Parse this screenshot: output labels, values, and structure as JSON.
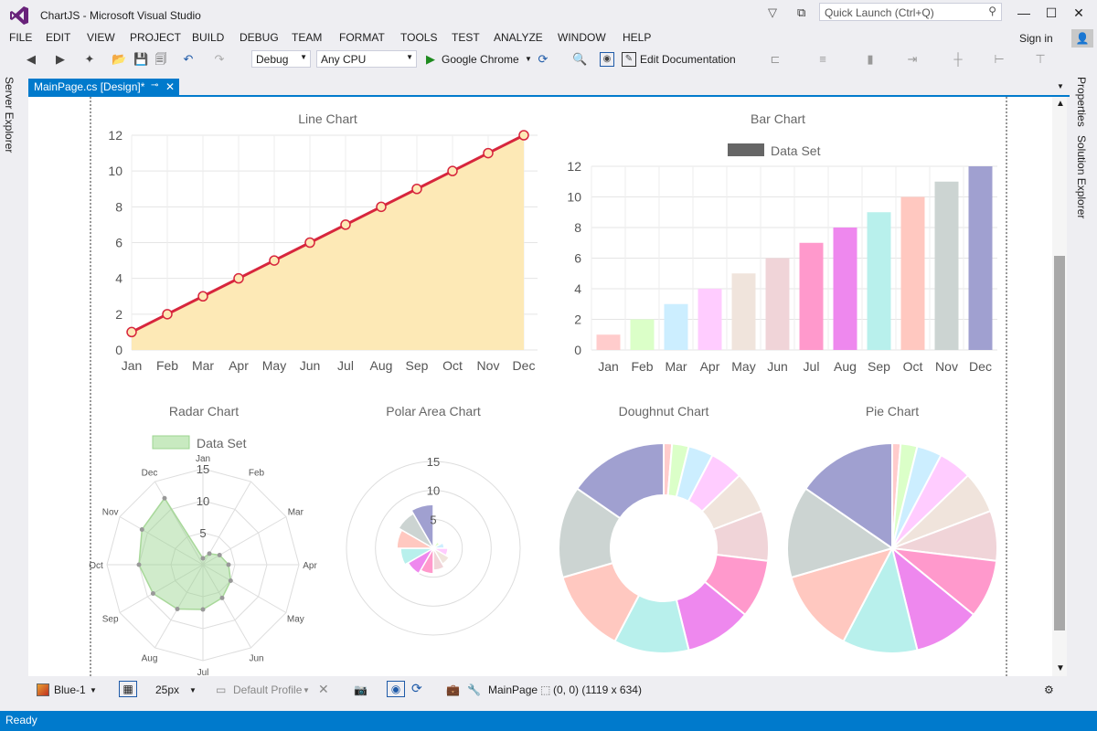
{
  "window": {
    "title": "ChartJS - Microsoft Visual Studio",
    "quick_launch_placeholder": "Quick Launch (Ctrl+Q)",
    "sign_in": "Sign in"
  },
  "menu": [
    "FILE",
    "EDIT",
    "VIEW",
    "PROJECT",
    "BUILD",
    "DEBUG",
    "TEAM",
    "FORMAT",
    "TOOLS",
    "TEST",
    "ANALYZE",
    "WINDOW",
    "HELP"
  ],
  "toolbar": {
    "config": "Debug",
    "platform": "Any CPU",
    "browser": "Google Chrome",
    "edit_doc": "Edit Documentation"
  },
  "side_tabs": {
    "server_explorer": "Server Explorer",
    "properties": "Properties",
    "solution_explorer": "Solution Explorer"
  },
  "doc_tab": {
    "label": "MainPage.cs [Design]*"
  },
  "bottom_bar": {
    "theme": "Blue-1",
    "grid_size": "25px",
    "profile": "Default Profile",
    "page": "MainPage",
    "coords": "(0, 0) (1119 x 634)"
  },
  "status": {
    "text": "Ready"
  },
  "colors": {
    "accent": "#007acc",
    "line": "#d7263d",
    "line_fill": "#fde9b6"
  },
  "chart_data": [
    {
      "type": "line",
      "title": "Line Chart",
      "categories": [
        "Jan",
        "Feb",
        "Mar",
        "Apr",
        "May",
        "Jun",
        "Jul",
        "Aug",
        "Sep",
        "Oct",
        "Nov",
        "Dec"
      ],
      "values": [
        1,
        2,
        3,
        4,
        5,
        6,
        7,
        8,
        9,
        10,
        11,
        12
      ],
      "yticks": [
        "0",
        "2",
        "4",
        "6",
        "8",
        "10",
        "12"
      ],
      "ylim": [
        0,
        12
      ]
    },
    {
      "type": "bar",
      "title": "Bar Chart",
      "legend": "Data Set",
      "categories": [
        "Jan",
        "Feb",
        "Mar",
        "Apr",
        "May",
        "Jun",
        "Jul",
        "Aug",
        "Sep",
        "Oct",
        "Nov",
        "Dec"
      ],
      "values": [
        1,
        2,
        3,
        4,
        5,
        6,
        7,
        8,
        9,
        10,
        11,
        12
      ],
      "colors": [
        "#ffcccc",
        "#dbffc8",
        "#cceeff",
        "#ffccff",
        "#f0e4dc",
        "#f0d4d8",
        "#ff99cc",
        "#ee88ee",
        "#b8f0ec",
        "#ffc8c0",
        "#ccd4d2",
        "#a0a0d0"
      ],
      "yticks": [
        "0",
        "2",
        "4",
        "6",
        "8",
        "10",
        "12"
      ],
      "ylim": [
        0,
        12
      ]
    },
    {
      "type": "radar",
      "title": "Radar Chart",
      "legend": "Data Set",
      "categories": [
        "Jan",
        "Feb",
        "Mar",
        "Apr",
        "May",
        "Jun",
        "Jul",
        "Aug",
        "Sep",
        "Oct",
        "Nov",
        "Dec"
      ],
      "values": [
        1,
        2,
        3,
        4,
        5,
        6,
        7,
        8,
        9,
        10,
        11,
        12
      ],
      "ticks": [
        "5",
        "10",
        "15"
      ],
      "max": 15
    },
    {
      "type": "polarArea",
      "title": "Polar Area Chart",
      "values": [
        1,
        2,
        3,
        4,
        5,
        6,
        7,
        8,
        9,
        10,
        11,
        12
      ],
      "colors": [
        "#ffcccc",
        "#dbffc8",
        "#cceeff",
        "#ffccff",
        "#f0e4dc",
        "#f0d4d8",
        "#ff99cc",
        "#ee88ee",
        "#b8f0ec",
        "#ffc8c0",
        "#ccd4d2",
        "#a0a0d0"
      ],
      "ticks": [
        "5",
        "10",
        "15"
      ],
      "max": 30
    },
    {
      "type": "doughnut",
      "title": "Doughnut Chart",
      "values": [
        1,
        2,
        3,
        4,
        5,
        6,
        7,
        8,
        9,
        10,
        11,
        12
      ],
      "colors": [
        "#ffcccc",
        "#dbffc8",
        "#cceeff",
        "#ffccff",
        "#f0e4dc",
        "#f0d4d8",
        "#ff99cc",
        "#ee88ee",
        "#b8f0ec",
        "#ffc8c0",
        "#ccd4d2",
        "#a0a0d0"
      ]
    },
    {
      "type": "pie",
      "title": "Pie Chart",
      "values": [
        1,
        2,
        3,
        4,
        5,
        6,
        7,
        8,
        9,
        10,
        11,
        12
      ],
      "colors": [
        "#ffcccc",
        "#dbffc8",
        "#cceeff",
        "#ffccff",
        "#f0e4dc",
        "#f0d4d8",
        "#ff99cc",
        "#ee88ee",
        "#b8f0ec",
        "#ffc8c0",
        "#ccd4d2",
        "#a0a0d0"
      ]
    }
  ]
}
